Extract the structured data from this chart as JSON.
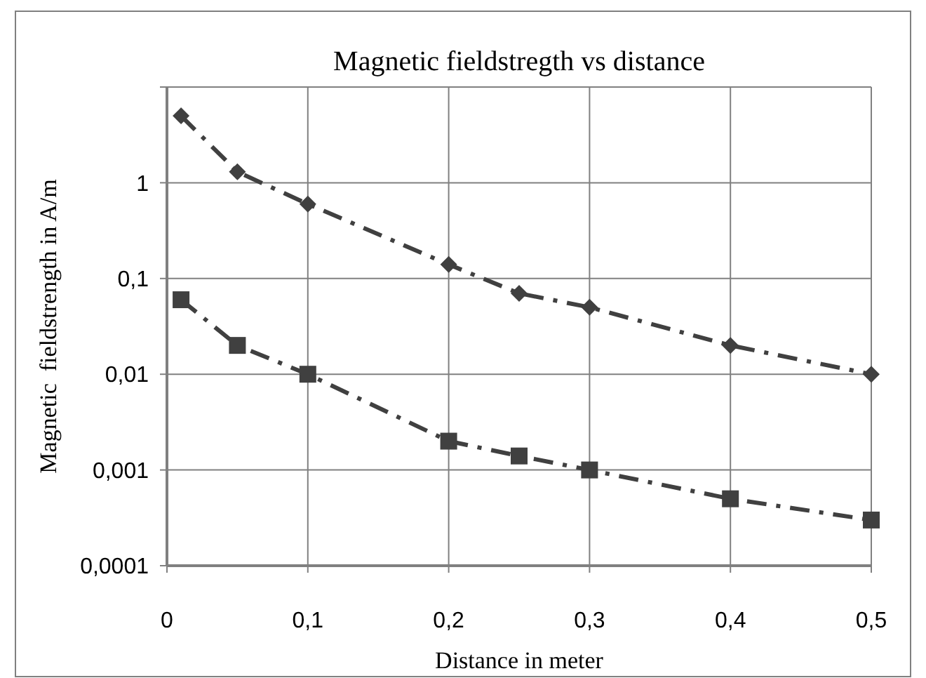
{
  "chart_data": {
    "type": "line",
    "title": "Magnetic fieldstregth vs distance",
    "xlabel": "Distance in meter",
    "ylabel": "Magnetic  fieldstrength in A/m",
    "x": [
      0.01,
      0.05,
      0.1,
      0.2,
      0.25,
      0.3,
      0.4,
      0.5
    ],
    "series": [
      {
        "color": "#404040",
        "marker": "diamond",
        "values": [
          5,
          1.3,
          0.6,
          0.14,
          0.07,
          0.05,
          0.02,
          0.01
        ]
      },
      {
        "color": "#404040",
        "marker": "square",
        "values": [
          0.06,
          0.02,
          0.01,
          0.002,
          0.0014,
          0.001,
          0.0005,
          0.0003
        ]
      }
    ],
    "xlim": [
      0,
      0.5
    ],
    "xticks": [
      {
        "value": 0,
        "label": "0"
      },
      {
        "value": 0.1,
        "label": "0,1"
      },
      {
        "value": 0.2,
        "label": "0,2"
      },
      {
        "value": 0.3,
        "label": "0,3"
      },
      {
        "value": 0.4,
        "label": "0,4"
      },
      {
        "value": 0.5,
        "label": "0,5"
      }
    ],
    "ylim": [
      0.0001,
      10
    ],
    "yticks": [
      {
        "value": 0.0001,
        "label": "0,0001"
      },
      {
        "value": 0.001,
        "label": "0,001"
      },
      {
        "value": 0.01,
        "label": "0,01"
      },
      {
        "value": 0.1,
        "label": "0,1"
      },
      {
        "value": 1,
        "label": "1"
      },
      {
        "value": 10,
        "label": null
      }
    ],
    "log": true,
    "grid": true,
    "line_style": "dashed"
  }
}
